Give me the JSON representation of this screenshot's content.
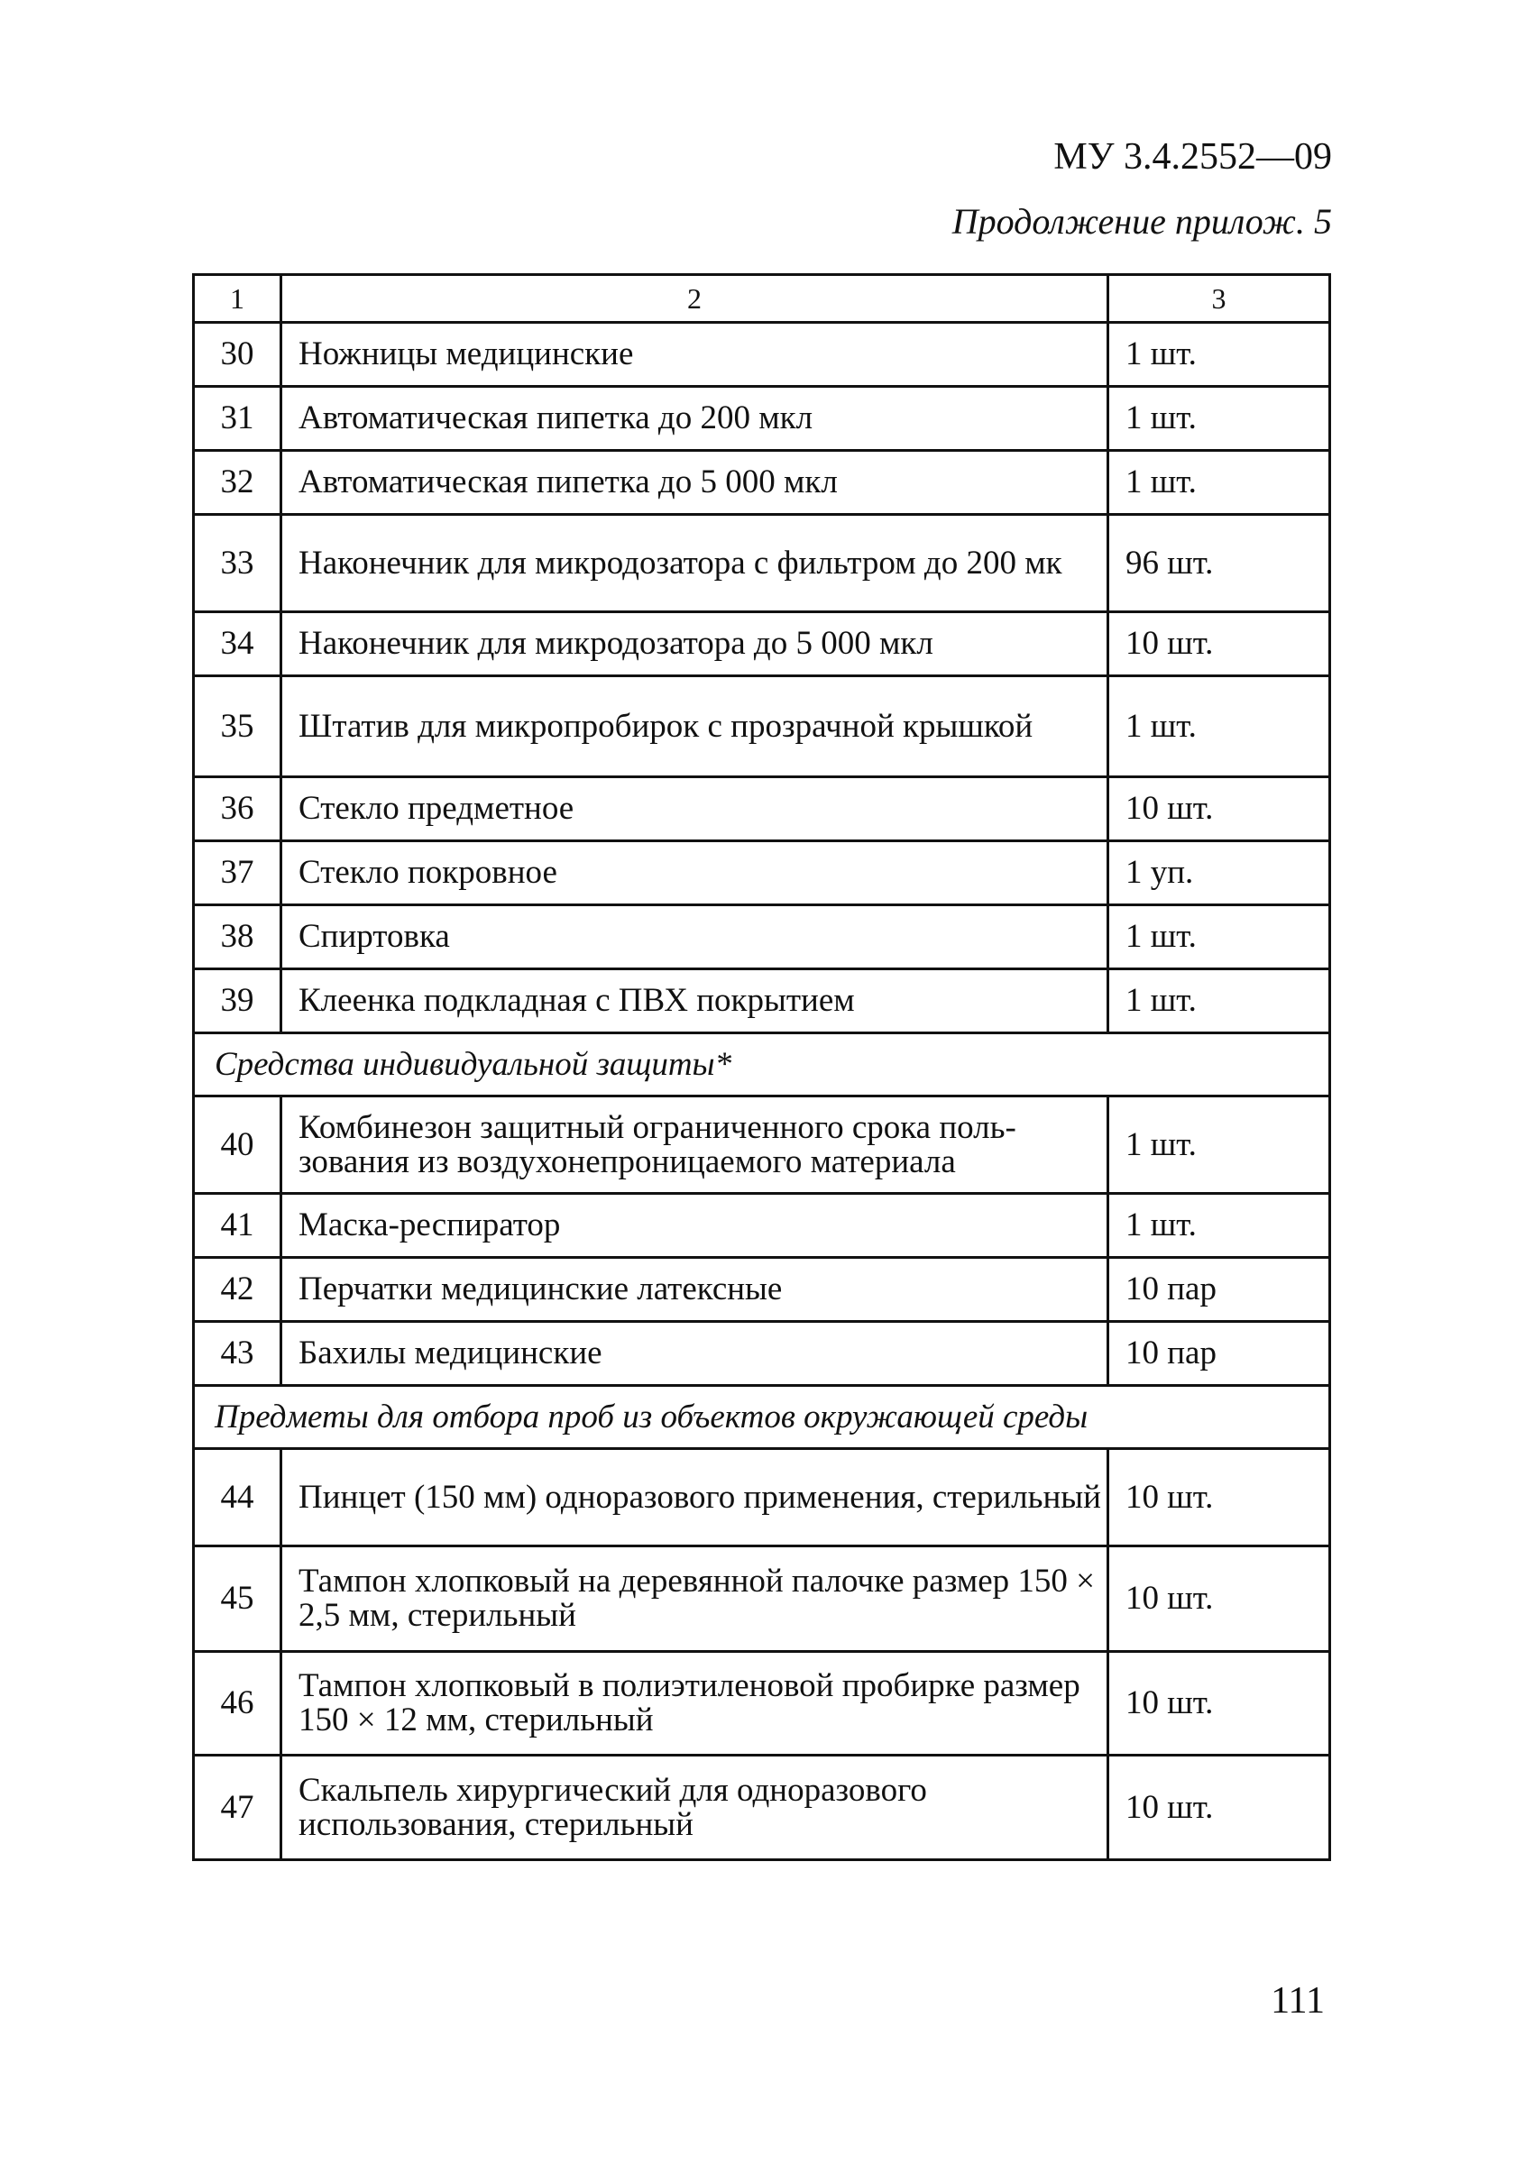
{
  "header": {
    "doc_code": "МУ 3.4.2552—09",
    "continuation": "Продолжение прилож. 5"
  },
  "table": {
    "columns": [
      "1",
      "2",
      "3"
    ],
    "rows": [
      {
        "type": "item",
        "num": "30",
        "name": "Ножницы медицинские",
        "qty": "1 шт."
      },
      {
        "type": "item",
        "num": "31",
        "name": "Автоматическая пипетка до 200 мкл",
        "qty": "1 шт."
      },
      {
        "type": "item",
        "num": "32",
        "name": "Автоматическая пипетка до 5 000 мкл",
        "qty": "1 шт."
      },
      {
        "type": "item",
        "num": "33",
        "name": "Наконечник для микродозатора с фильтром до 200 мк",
        "qty": "96 шт."
      },
      {
        "type": "item",
        "num": "34",
        "name": "Наконечник для микродозатора до 5 000 мкл",
        "qty": "10 шт."
      },
      {
        "type": "item",
        "num": "35",
        "name": "Штатив для микропробирок с прозрачной крышкой",
        "qty": "1 шт."
      },
      {
        "type": "item",
        "num": "36",
        "name": "Стекло предметное",
        "qty": "10 шт."
      },
      {
        "type": "item",
        "num": "37",
        "name": "Стекло покровное",
        "qty": "1 уп."
      },
      {
        "type": "item",
        "num": "38",
        "name": "Спиртовка",
        "qty": "1 шт."
      },
      {
        "type": "item",
        "num": "39",
        "name": "Клеенка подкладная с ПВХ покрытием",
        "qty": "1 шт."
      },
      {
        "type": "section",
        "title": "Средства индивидуальной защиты*"
      },
      {
        "type": "item",
        "num": "40",
        "name": "Комбинезон защитный ограниченного срока поль-зования из воздухонепроницаемого материала",
        "qty": "1 шт."
      },
      {
        "type": "item",
        "num": "41",
        "name": "Маска-респиратор",
        "qty": "1 шт."
      },
      {
        "type": "item",
        "num": "42",
        "name": "Перчатки медицинские латексные",
        "qty": "10 пар"
      },
      {
        "type": "item",
        "num": "43",
        "name": "Бахилы медицинские",
        "qty": "10 пар"
      },
      {
        "type": "section",
        "title": "Предметы для отбора проб из объектов окружающей среды"
      },
      {
        "type": "item",
        "num": "44",
        "name": "Пинцет (150 мм) одноразового применения, стерильный",
        "qty": "10 шт."
      },
      {
        "type": "item",
        "num": "45",
        "name": "Тампон хлопковый на деревянной палочке размер 150 × 2,5 мм, стерильный",
        "qty": "10 шт."
      },
      {
        "type": "item",
        "num": "46",
        "name": "Тампон хлопковый в полиэтиленовой пробирке размер 150 × 12 мм, стерильный",
        "qty": "10 шт."
      },
      {
        "type": "item",
        "num": "47",
        "name": "Скальпель хирургический для одноразового использования, стерильный",
        "qty": "10 шт."
      }
    ]
  },
  "footer": {
    "page_number": "111"
  }
}
